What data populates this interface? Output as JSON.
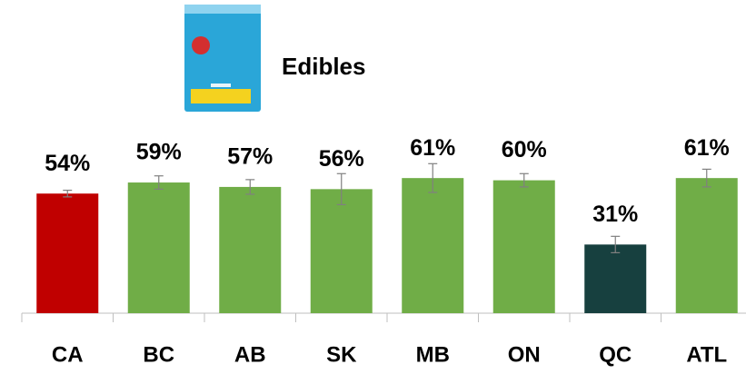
{
  "chart_data": {
    "type": "bar",
    "title": "Edibles",
    "categories": [
      "CA",
      "BC",
      "AB",
      "SK",
      "MB",
      "ON",
      "QC",
      "ATL"
    ],
    "values": [
      54,
      59,
      57,
      56,
      61,
      60,
      31,
      61
    ],
    "value_labels": [
      "54%",
      "59%",
      "57%",
      "56%",
      "61%",
      "60%",
      "31%",
      "61%"
    ],
    "errors": [
      1.5,
      3,
      3.3,
      7,
      6.5,
      3,
      3.7,
      4
    ],
    "colors": [
      "#c00000",
      "#70ad47",
      "#70ad47",
      "#70ad47",
      "#70ad47",
      "#70ad47",
      "#17403f",
      "#70ad47"
    ],
    "ylim": [
      0,
      100
    ]
  }
}
